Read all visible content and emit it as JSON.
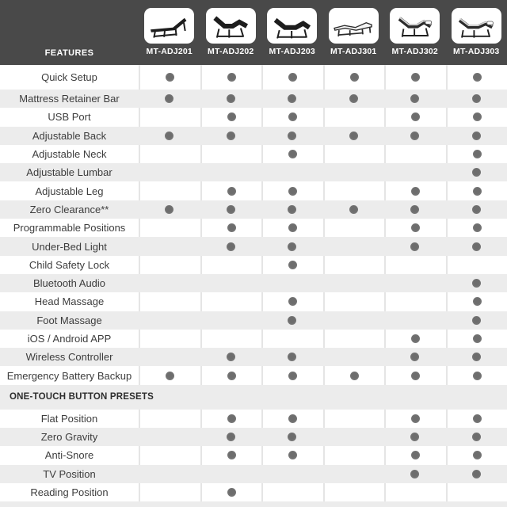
{
  "header": {
    "features_label": "FEATURES",
    "products": [
      {
        "id": "MT-ADJ201",
        "icon": "bed-flat-dark"
      },
      {
        "id": "MT-ADJ202",
        "icon": "bed-adjustable-dark"
      },
      {
        "id": "MT-ADJ203",
        "icon": "bed-adjustable-dark-alt"
      },
      {
        "id": "MT-ADJ301",
        "icon": "bed-flat-light"
      },
      {
        "id": "MT-ADJ302",
        "icon": "bed-adjustable-light"
      },
      {
        "id": "MT-ADJ303",
        "icon": "bed-adjustable-light-alt"
      }
    ]
  },
  "sections": [
    {
      "title": "",
      "rows": [
        {
          "feature": "Quick Setup",
          "values": [
            1,
            1,
            1,
            1,
            1,
            1
          ]
        },
        {
          "feature": "Mattress Retainer Bar",
          "values": [
            1,
            1,
            1,
            1,
            1,
            1
          ]
        },
        {
          "feature": "USB Port",
          "values": [
            0,
            1,
            1,
            0,
            1,
            1
          ]
        },
        {
          "feature": "Adjustable Back",
          "values": [
            1,
            1,
            1,
            1,
            1,
            1
          ]
        },
        {
          "feature": "Adjustable Neck",
          "values": [
            0,
            0,
            1,
            0,
            0,
            1
          ]
        },
        {
          "feature": "Adjustable Lumbar",
          "values": [
            0,
            0,
            0,
            0,
            0,
            1
          ]
        },
        {
          "feature": "Adjustable Leg",
          "values": [
            0,
            1,
            1,
            0,
            1,
            1
          ]
        },
        {
          "feature": "Zero Clearance**",
          "values": [
            1,
            1,
            1,
            1,
            1,
            1
          ]
        },
        {
          "feature": "Programmable Positions",
          "values": [
            0,
            1,
            1,
            0,
            1,
            1
          ]
        },
        {
          "feature": "Under-Bed Light",
          "values": [
            0,
            1,
            1,
            0,
            1,
            1
          ]
        },
        {
          "feature": "Child Safety Lock",
          "values": [
            0,
            0,
            1,
            0,
            0,
            0
          ]
        },
        {
          "feature": "Bluetooth Audio",
          "values": [
            0,
            0,
            0,
            0,
            0,
            1
          ]
        },
        {
          "feature": "Head Massage",
          "values": [
            0,
            0,
            1,
            0,
            0,
            1
          ]
        },
        {
          "feature": "Foot Massage",
          "values": [
            0,
            0,
            1,
            0,
            0,
            1
          ]
        },
        {
          "feature": "iOS / Android APP",
          "values": [
            0,
            0,
            0,
            0,
            1,
            1
          ]
        },
        {
          "feature": "Wireless Controller",
          "values": [
            0,
            1,
            1,
            0,
            1,
            1
          ]
        },
        {
          "feature": "Emergency Battery Backup",
          "values": [
            1,
            1,
            1,
            1,
            1,
            1
          ]
        }
      ]
    },
    {
      "title": "ONE-TOUCH BUTTON PRESETS",
      "rows": [
        {
          "feature": "Flat Position",
          "values": [
            0,
            1,
            1,
            0,
            1,
            1
          ]
        },
        {
          "feature": "Zero Gravity",
          "values": [
            0,
            1,
            1,
            0,
            1,
            1
          ]
        },
        {
          "feature": "Anti-Snore",
          "values": [
            0,
            1,
            1,
            0,
            1,
            1
          ]
        },
        {
          "feature": "TV Position",
          "values": [
            0,
            0,
            0,
            0,
            1,
            1
          ]
        },
        {
          "feature": "Reading Position",
          "values": [
            0,
            1,
            0,
            0,
            0,
            0
          ]
        }
      ]
    }
  ],
  "colors": {
    "header_bg": "#494949",
    "alt_row_bg": "#ececec",
    "separator": "#e5e5e5",
    "dot": "#757575",
    "feature_text": "#3d3d3d",
    "header_text": "#ffffff"
  }
}
